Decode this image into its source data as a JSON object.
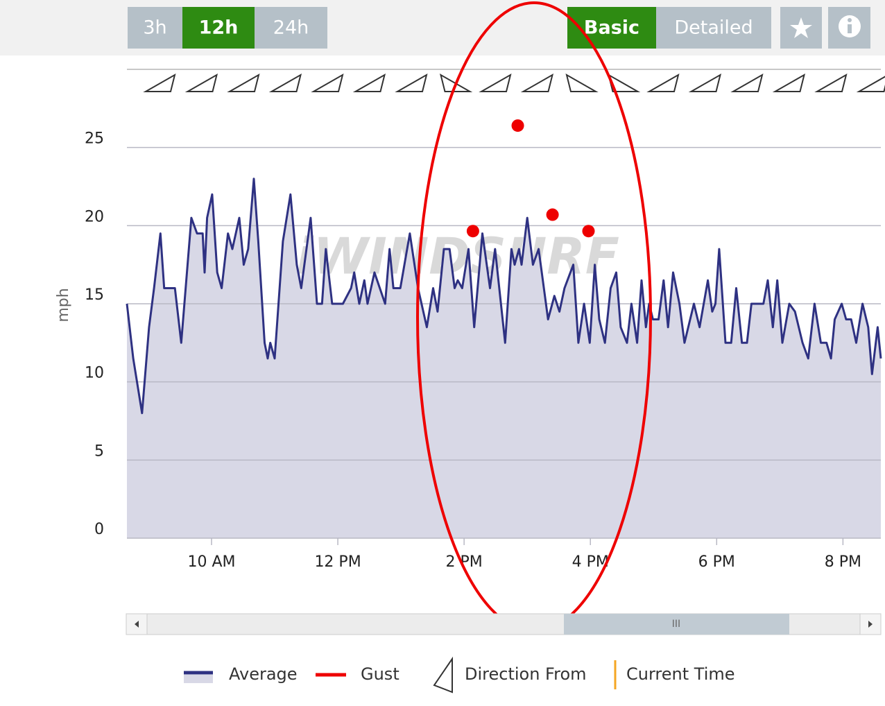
{
  "toolbar": {
    "ranges": [
      "3h",
      "12h",
      "24h"
    ],
    "active_range": 1,
    "modes": [
      "Basic",
      "Detailed"
    ],
    "active_mode": 0
  },
  "chart_data": {
    "type": "line",
    "y_label": "mph",
    "watermark": "iWINDSURF",
    "xlim": [
      8.66,
      20.6
    ],
    "ylim": [
      0,
      30
    ],
    "xticks": [
      {
        "value": 10,
        "label": "10 AM"
      },
      {
        "value": 12,
        "label": "12 PM"
      },
      {
        "value": 14,
        "label": "2 PM"
      },
      {
        "value": 16,
        "label": "4 PM"
      },
      {
        "value": 18,
        "label": "6 PM"
      },
      {
        "value": 20,
        "label": "8 PM"
      }
    ],
    "yticks": [
      0,
      5,
      10,
      15,
      20,
      25
    ],
    "grid": true,
    "series": [
      {
        "name": "Average",
        "color": "#2e3182",
        "fill": "#d8d8e6",
        "x": [
          8.66,
          8.76,
          8.9,
          9.01,
          9.09,
          9.19,
          9.25,
          9.42,
          9.52,
          9.68,
          9.77,
          9.86,
          9.89,
          9.93,
          10.01,
          10.09,
          10.16,
          10.26,
          10.33,
          10.44,
          10.51,
          10.58,
          10.67,
          10.74,
          10.84,
          10.89,
          10.93,
          11.0,
          11.13,
          11.25,
          11.35,
          11.42,
          11.57,
          11.67,
          11.75,
          11.81,
          11.91,
          12.08,
          12.21,
          12.26,
          12.34,
          12.42,
          12.47,
          12.58,
          12.75,
          12.82,
          12.88,
          12.99,
          13.14,
          13.27,
          13.41,
          13.51,
          13.58,
          13.68,
          13.77,
          13.85,
          13.9,
          13.97,
          14.07,
          14.16,
          14.29,
          14.41,
          14.49,
          14.65,
          14.75,
          14.8,
          14.87,
          14.91,
          15.0,
          15.09,
          15.18,
          15.33,
          15.43,
          15.51,
          15.59,
          15.73,
          15.81,
          15.9,
          15.99,
          16.07,
          16.14,
          16.23,
          16.32,
          16.41,
          16.48,
          16.58,
          16.65,
          16.74,
          16.81,
          16.88,
          16.93,
          16.99,
          17.08,
          17.16,
          17.23,
          17.31,
          17.41,
          17.49,
          17.64,
          17.73,
          17.86,
          17.93,
          17.98,
          18.04,
          18.14,
          18.23,
          18.31,
          18.4,
          18.48,
          18.55,
          18.74,
          18.81,
          18.89,
          18.96,
          19.04,
          19.15,
          19.24,
          19.36,
          19.45,
          19.55,
          19.65,
          19.74,
          19.81,
          19.87,
          19.98,
          20.05,
          20.13,
          20.21,
          20.31,
          20.4,
          20.46,
          20.55,
          20.6
        ],
        "values": [
          15,
          11.5,
          8,
          13.5,
          16,
          19.5,
          16,
          16,
          12.5,
          20.5,
          19.5,
          19.5,
          17,
          20.5,
          22,
          17,
          16,
          19.5,
          18.5,
          20.5,
          17.5,
          18.5,
          23,
          19,
          12.5,
          11.5,
          12.5,
          11.5,
          19,
          22,
          17.5,
          16,
          20.5,
          15,
          15,
          18.5,
          15,
          15,
          16,
          17,
          15,
          16.5,
          15,
          17,
          15,
          18.5,
          16,
          16,
          19.5,
          16,
          13.5,
          16,
          14.5,
          18.5,
          18.5,
          16,
          16.5,
          16,
          18.5,
          13.5,
          19.5,
          16,
          18.5,
          12.5,
          18.5,
          17.5,
          18.5,
          17.5,
          20.5,
          17.5,
          18.5,
          14,
          15.5,
          14.5,
          16,
          17.5,
          12.5,
          15,
          12.5,
          17.5,
          14,
          12.5,
          16,
          17,
          13.5,
          12.5,
          15,
          12.5,
          16.5,
          13.5,
          15,
          14,
          14,
          16.5,
          13.5,
          17,
          15,
          12.5,
          15,
          13.5,
          16.5,
          14.5,
          15,
          18.5,
          12.5,
          12.5,
          16,
          12.5,
          12.5,
          15,
          15,
          16.5,
          13.5,
          16.5,
          12.5,
          15,
          14.5,
          12.5,
          11.5,
          15,
          12.5,
          12.5,
          11.5,
          14,
          15,
          14,
          14,
          12.5,
          15,
          13.5,
          10.5,
          13.5,
          11.5
        ]
      },
      {
        "name": "Gust",
        "color": "#ee0000",
        "x": [
          14.14,
          14.85,
          15.4,
          15.97
        ],
        "values": [
          19.65,
          26.4,
          20.7,
          19.65
        ]
      }
    ],
    "extra_legend": [
      "Direction From",
      "Current Time"
    ]
  }
}
